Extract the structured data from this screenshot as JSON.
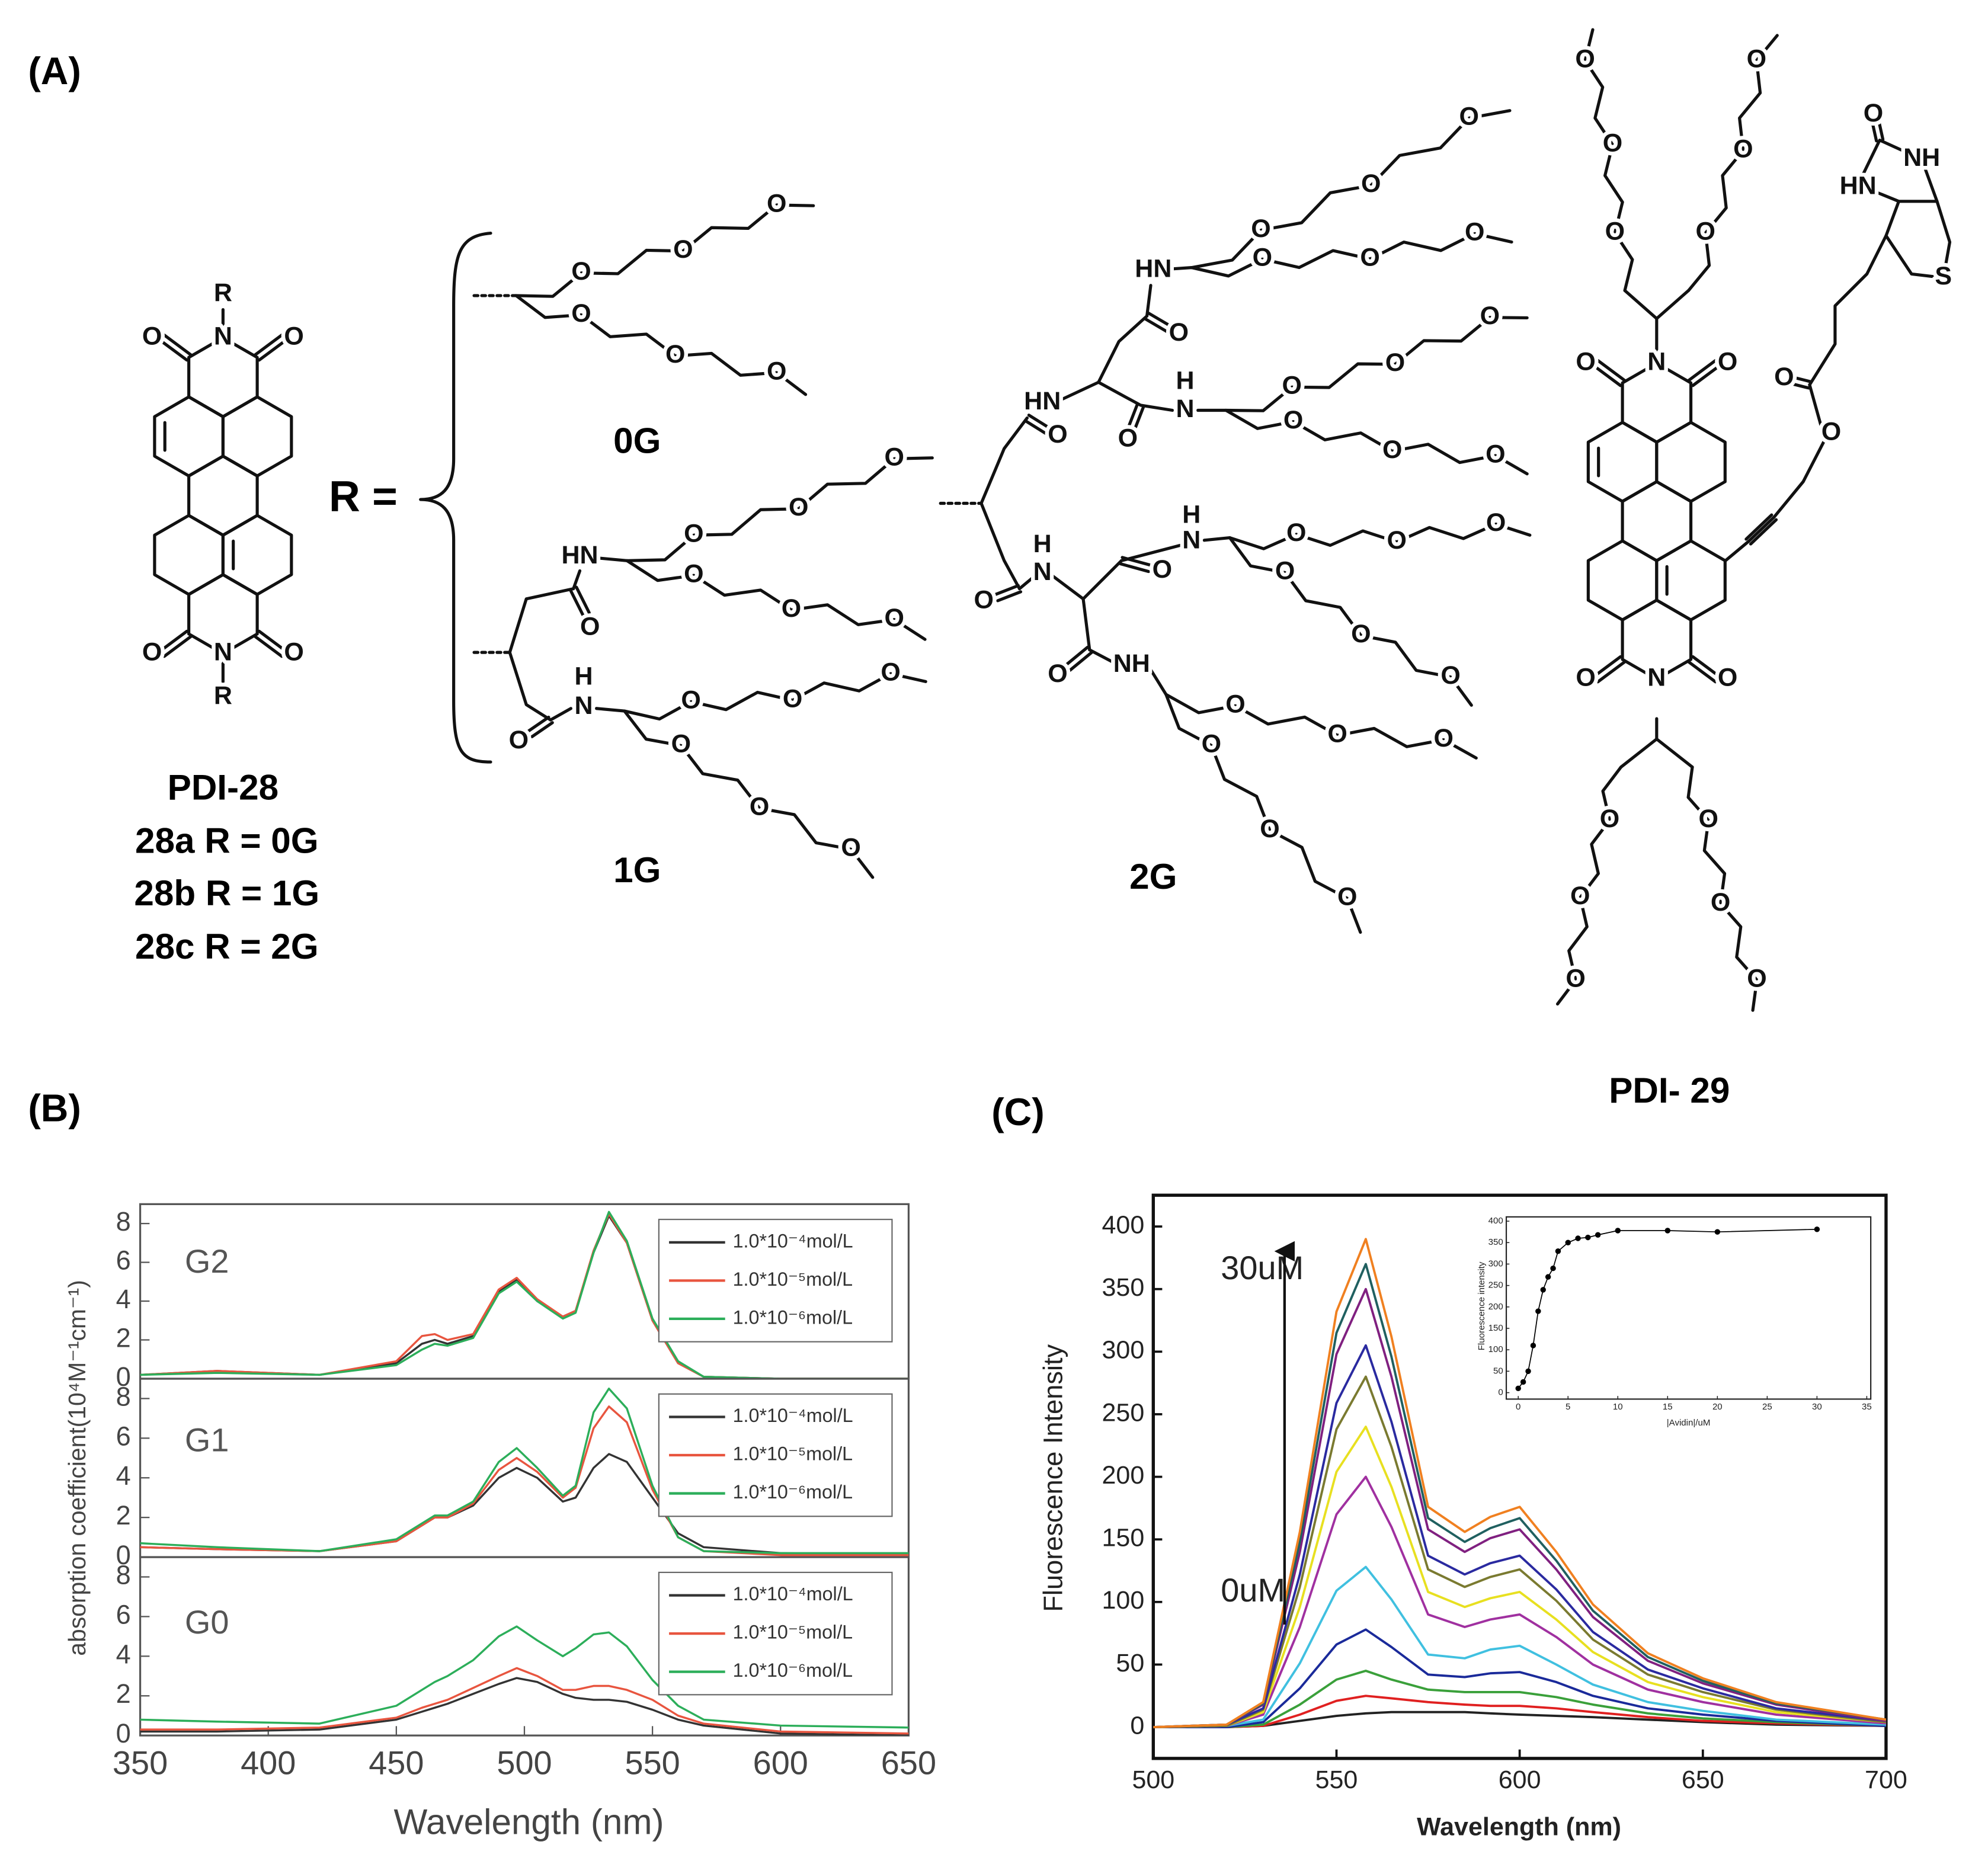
{
  "panels": {
    "a": "(A)",
    "b": "(B)",
    "c": "(C)"
  },
  "structures": {
    "pdi28": {
      "atoms": [
        "R",
        "O",
        "N",
        "O",
        "O",
        "N",
        "O",
        "R"
      ],
      "name": "PDI-28",
      "variants": [
        "28a R = 0G",
        "28b R = 1G",
        "28c R = 2G"
      ]
    },
    "r_equals": "R =",
    "g0": {
      "label": "0G",
      "atoms": [
        "O",
        "O",
        "O",
        "O",
        "O",
        "O"
      ]
    },
    "g1": {
      "label": "1G",
      "atoms": [
        "HN",
        "O",
        "O",
        "O",
        "O",
        "O",
        "O",
        "O",
        "O",
        "H",
        "N",
        "O",
        "O",
        "O",
        "O",
        "O",
        "O"
      ]
    },
    "g2": {
      "label": "2G",
      "atoms": [
        "HN",
        "O",
        "O",
        "HN",
        "O",
        "O",
        "O",
        "O",
        "O",
        "O",
        "H",
        "N",
        "O",
        "O",
        "O",
        "O",
        "O",
        "O",
        "O",
        "O",
        "H",
        "N",
        "O",
        "H",
        "N",
        "O",
        "O",
        "O",
        "O",
        "O",
        "O",
        "O",
        "NH",
        "O",
        "O",
        "O",
        "O",
        "O",
        "O"
      ]
    },
    "pdi29": {
      "name": "PDI- 29",
      "atoms": [
        "O",
        "N",
        "O",
        "O",
        "N",
        "O",
        "O",
        "O",
        "O",
        "O",
        "O",
        "O",
        "O",
        "O",
        "O",
        "O",
        "O",
        "O",
        "O",
        "O",
        "O",
        "NH",
        "HN",
        "S"
      ]
    }
  },
  "chart_data": [
    {
      "type": "line",
      "annotation": "G2",
      "legend": "upper right",
      "xlim": [
        350,
        650
      ],
      "ylim": [
        0,
        9
      ],
      "yticks": [
        0,
        2,
        4,
        6,
        8
      ],
      "x": [
        350,
        380,
        420,
        450,
        460,
        465,
        470,
        480,
        490,
        497,
        505,
        515,
        520,
        527,
        533,
        540,
        550,
        560,
        570,
        600,
        650
      ],
      "series": [
        {
          "name": "1.0*10⁻⁴mol/L",
          "color": "#333333",
          "values": [
            0.2,
            0.4,
            0.2,
            0.8,
            1.8,
            2.0,
            1.8,
            2.2,
            4.5,
            5.1,
            4.0,
            3.2,
            3.5,
            6.5,
            8.4,
            7.0,
            3.0,
            0.8,
            0.1,
            0,
            0
          ]
        },
        {
          "name": "1.0*10⁻⁵mol/L",
          "color": "#e8553f",
          "values": [
            0.2,
            0.4,
            0.2,
            0.9,
            2.2,
            2.3,
            2.0,
            2.3,
            4.6,
            5.2,
            4.1,
            3.2,
            3.5,
            6.6,
            8.5,
            7.0,
            3.0,
            0.8,
            0.1,
            0,
            0
          ]
        },
        {
          "name": "1.0*10⁻⁶mol/L",
          "color": "#2cae5a",
          "values": [
            0.2,
            0.3,
            0.2,
            0.7,
            1.5,
            1.8,
            1.7,
            2.1,
            4.4,
            5.0,
            4.0,
            3.1,
            3.4,
            6.5,
            8.6,
            7.1,
            3.1,
            0.9,
            0.1,
            0,
            0
          ]
        }
      ]
    },
    {
      "type": "line",
      "annotation": "G1",
      "legend": "upper right",
      "ylabel": "absorption coefficient(10⁴M⁻¹cm⁻¹)",
      "xlim": [
        350,
        650
      ],
      "ylim": [
        0,
        9
      ],
      "yticks": [
        0,
        2,
        4,
        6,
        8
      ],
      "x": [
        350,
        380,
        420,
        450,
        460,
        465,
        470,
        480,
        490,
        497,
        505,
        515,
        520,
        527,
        533,
        540,
        550,
        560,
        570,
        600,
        650
      ],
      "series": [
        {
          "name": "1.0*10⁻⁴mol/L",
          "color": "#333333",
          "values": [
            0.5,
            0.4,
            0.3,
            0.8,
            1.6,
            2.0,
            2.0,
            2.6,
            4.0,
            4.5,
            4.0,
            2.8,
            3.0,
            4.5,
            5.2,
            4.8,
            3.0,
            1.2,
            0.5,
            0.2,
            0.1
          ]
        },
        {
          "name": "1.0*10⁻⁵mol/L",
          "color": "#e8553f",
          "values": [
            0.5,
            0.4,
            0.3,
            0.8,
            1.6,
            2.0,
            2.0,
            2.7,
            4.4,
            5.0,
            4.3,
            3.0,
            3.5,
            6.5,
            7.6,
            6.8,
            3.4,
            1.0,
            0.3,
            0.1,
            0.1
          ]
        },
        {
          "name": "1.0*10⁻⁶mol/L",
          "color": "#2cae5a",
          "values": [
            0.7,
            0.5,
            0.3,
            0.9,
            1.7,
            2.1,
            2.1,
            2.8,
            4.8,
            5.5,
            4.5,
            3.1,
            3.6,
            7.3,
            8.5,
            7.5,
            3.6,
            1.0,
            0.3,
            0.2,
            0.2
          ]
        }
      ]
    },
    {
      "type": "line",
      "annotation": "G0",
      "legend": "upper right",
      "xlabel": "Wavelength (nm)",
      "xlim": [
        350,
        650
      ],
      "ylim": [
        0,
        9
      ],
      "yticks": [
        0,
        2,
        4,
        6,
        8
      ],
      "xticks": [
        350,
        400,
        450,
        500,
        550,
        600,
        650
      ],
      "x": [
        350,
        380,
        420,
        450,
        460,
        465,
        470,
        480,
        490,
        497,
        505,
        515,
        520,
        527,
        533,
        540,
        550,
        560,
        570,
        600,
        650
      ],
      "series": [
        {
          "name": "1.0*10⁻⁴mol/L",
          "color": "#333333",
          "values": [
            0.2,
            0.2,
            0.3,
            0.8,
            1.2,
            1.4,
            1.6,
            2.1,
            2.6,
            2.9,
            2.7,
            2.1,
            1.9,
            1.8,
            1.8,
            1.7,
            1.3,
            0.8,
            0.5,
            0.1,
            0
          ]
        },
        {
          "name": "1.0*10⁻⁵mol/L",
          "color": "#e8553f",
          "values": [
            0.3,
            0.3,
            0.4,
            0.9,
            1.4,
            1.6,
            1.8,
            2.4,
            3.0,
            3.4,
            3.0,
            2.3,
            2.3,
            2.5,
            2.5,
            2.3,
            1.8,
            1.0,
            0.6,
            0.2,
            0.1
          ]
        },
        {
          "name": "1.0*10⁻⁶mol/L",
          "color": "#2cae5a",
          "values": [
            0.8,
            0.7,
            0.6,
            1.5,
            2.3,
            2.7,
            3.0,
            3.8,
            5.0,
            5.5,
            4.8,
            4.0,
            4.4,
            5.1,
            5.2,
            4.5,
            2.8,
            1.5,
            0.8,
            0.5,
            0.4
          ]
        }
      ]
    },
    {
      "type": "line",
      "xlabel": "Wavelength (nm)",
      "ylabel": "Fluorescence Intensity",
      "annotations": [
        "30uM",
        "0uM"
      ],
      "xlim": [
        500,
        700
      ],
      "ylim": [
        -25,
        425
      ],
      "xticks": [
        500,
        550,
        600,
        650,
        700
      ],
      "yticks": [
        0,
        50,
        100,
        150,
        200,
        250,
        300,
        350,
        400
      ],
      "x": [
        500,
        520,
        530,
        540,
        550,
        558,
        565,
        575,
        585,
        592,
        600,
        610,
        620,
        635,
        650,
        670,
        700
      ],
      "series": [
        {
          "color": "#222222",
          "values": [
            0,
            0,
            1,
            5,
            9,
            11,
            12,
            12,
            12,
            11,
            10,
            9,
            8,
            6,
            4,
            2,
            1
          ]
        },
        {
          "color": "#e02020",
          "values": [
            0,
            0,
            1,
            10,
            21,
            25,
            23,
            20,
            18,
            17,
            17,
            15,
            12,
            8,
            5,
            3,
            1
          ]
        },
        {
          "color": "#3aa03a",
          "values": [
            0,
            0,
            2,
            18,
            38,
            45,
            38,
            30,
            28,
            28,
            28,
            24,
            18,
            11,
            7,
            4,
            1
          ]
        },
        {
          "color": "#1a2a9a",
          "values": [
            0,
            0,
            4,
            31,
            66,
            78,
            64,
            42,
            40,
            43,
            44,
            36,
            25,
            15,
            10,
            5,
            1
          ]
        },
        {
          "color": "#40c0e0",
          "values": [
            0,
            1,
            6,
            51,
            109,
            128,
            102,
            58,
            55,
            62,
            65,
            50,
            34,
            20,
            13,
            6,
            2
          ]
        },
        {
          "color": "#a030a0",
          "values": [
            0,
            1,
            10,
            80,
            170,
            200,
            160,
            90,
            80,
            86,
            90,
            72,
            50,
            30,
            20,
            10,
            3
          ]
        },
        {
          "color": "#e8e020",
          "values": [
            0,
            1,
            12,
            96,
            204,
            240,
            192,
            108,
            96,
            103,
            108,
            86,
            60,
            36,
            24,
            12,
            4
          ]
        },
        {
          "color": "#7a7a30",
          "values": [
            0,
            1,
            14,
            112,
            238,
            280,
            224,
            126,
            112,
            120,
            126,
            101,
            70,
            42,
            28,
            14,
            4
          ]
        },
        {
          "color": "#2a2aa0",
          "values": [
            0,
            2,
            15,
            122,
            259,
            305,
            244,
            137,
            122,
            131,
            137,
            110,
            76,
            46,
            31,
            15,
            5
          ]
        },
        {
          "color": "#802080",
          "values": [
            0,
            2,
            18,
            140,
            298,
            350,
            280,
            158,
            140,
            151,
            158,
            126,
            88,
            53,
            35,
            18,
            5
          ]
        },
        {
          "color": "#206060",
          "values": [
            0,
            2,
            19,
            148,
            315,
            370,
            296,
            167,
            148,
            159,
            167,
            133,
            93,
            56,
            37,
            19,
            6
          ]
        },
        {
          "color": "#f08020",
          "values": [
            0,
            2,
            20,
            156,
            332,
            390,
            312,
            176,
            156,
            168,
            176,
            140,
            98,
            59,
            39,
            20,
            6
          ]
        }
      ]
    },
    {
      "type": "line",
      "markers": true,
      "xlabel": "|Avidin|/uM",
      "ylabel": "Fluorescence intensity",
      "xlim": [
        -1.2,
        35.4
      ],
      "ylim": [
        -15,
        410
      ],
      "xticks": [
        0,
        5,
        10,
        15,
        20,
        25,
        30,
        35
      ],
      "yticks": [
        0,
        50,
        100,
        150,
        200,
        250,
        300,
        350,
        400
      ],
      "x": [
        0,
        0.5,
        1,
        1.5,
        2,
        2.5,
        3,
        3.5,
        4,
        5,
        6,
        7,
        8,
        10,
        15,
        20,
        30
      ],
      "series": [
        {
          "color": "#000000",
          "values": [
            10,
            25,
            50,
            110,
            190,
            240,
            270,
            290,
            330,
            350,
            360,
            362,
            368,
            378,
            378,
            375,
            381
          ]
        }
      ]
    }
  ]
}
